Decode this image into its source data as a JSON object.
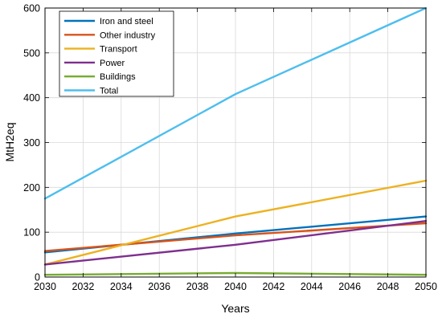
{
  "chart_data": {
    "type": "line",
    "title": "",
    "xlabel": "Years",
    "ylabel": "MtH2eq",
    "xlim": [
      2030,
      2050
    ],
    "ylim": [
      0,
      600
    ],
    "xticks": [
      2030,
      2032,
      2034,
      2036,
      2038,
      2040,
      2042,
      2044,
      2046,
      2048,
      2050
    ],
    "yticks": [
      0,
      100,
      200,
      300,
      400,
      500,
      600
    ],
    "grid": true,
    "legend_position": "top-left",
    "x": [
      2030,
      2040,
      2050
    ],
    "series": [
      {
        "name": "Iron and steel",
        "color": "#0072BD",
        "values": [
          55,
          97,
          135
        ]
      },
      {
        "name": "Other industry",
        "color": "#D95319",
        "values": [
          58,
          93,
          120
        ]
      },
      {
        "name": "Transport",
        "color": "#EDB120",
        "values": [
          28,
          135,
          215
        ]
      },
      {
        "name": "Power",
        "color": "#7E2F8E",
        "values": [
          28,
          72,
          125
        ]
      },
      {
        "name": "Buildings",
        "color": "#77AC30",
        "values": [
          5,
          9,
          5
        ]
      },
      {
        "name": "Total",
        "color": "#4DBEEE",
        "values": [
          175,
          408,
          600
        ]
      }
    ]
  }
}
